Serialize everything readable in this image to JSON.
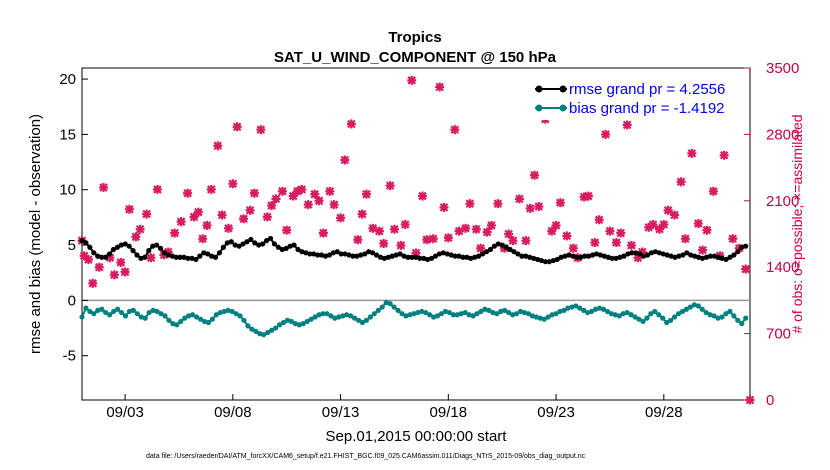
{
  "chart_data": {
    "type": "line",
    "title": "Tropics",
    "subtitle": "SAT_U_WIND_COMPONENT @ 150 hPa",
    "xlabel": "Sep.01,2015 00:00:00 start",
    "ylabel_left": "rmse and bias (model - observation)",
    "ylabel_right": "# of obs: o=possible; ×=assimilated",
    "x_range_days": [
      1,
      32
    ],
    "ylim_left": [
      -9,
      21
    ],
    "ylim_right": [
      0,
      3500
    ],
    "left_ticks": [
      -5,
      0,
      5,
      10,
      15,
      20
    ],
    "right_ticks": [
      0,
      700,
      1400,
      2100,
      2800,
      3500
    ],
    "x_ticks": [
      {
        "day": 3,
        "label": "09/03"
      },
      {
        "day": 8,
        "label": "09/08"
      },
      {
        "day": 13,
        "label": "09/13"
      },
      {
        "day": 18,
        "label": "09/18"
      },
      {
        "day": 23,
        "label": "09/23"
      },
      {
        "day": 28,
        "label": "09/28"
      }
    ],
    "series": [
      {
        "name": "rmse",
        "legend": "rmse grand pr = 4.2556",
        "color": "#000000",
        "axis": "left",
        "values": [
          5.4,
          5.2,
          4.8,
          4.3,
          4.0,
          3.9,
          3.9,
          4.2,
          4.6,
          4.8,
          5.0,
          5.1,
          4.9,
          4.5,
          4.1,
          3.8,
          3.9,
          4.5,
          4.9,
          5.0,
          4.7,
          4.3,
          4.1,
          4.0,
          3.9,
          3.9,
          3.9,
          3.8,
          3.8,
          3.7,
          4.0,
          4.3,
          4.2,
          4.0,
          3.9,
          4.3,
          4.8,
          5.2,
          5.3,
          5.0,
          4.9,
          5.1,
          5.3,
          5.5,
          5.2,
          5.0,
          5.1,
          5.4,
          5.6,
          5.1,
          4.8,
          4.6,
          4.7,
          4.9,
          5.0,
          4.6,
          4.4,
          4.3,
          4.2,
          4.2,
          4.1,
          4.1,
          4.0,
          4.1,
          4.3,
          4.4,
          4.2,
          4.2,
          4.1,
          4.0,
          4.0,
          4.1,
          4.2,
          4.4,
          4.3,
          4.1,
          3.9,
          3.8,
          3.9,
          4.0,
          4.1,
          4.2,
          4.0,
          3.9,
          3.9,
          3.9,
          3.8,
          3.8,
          3.7,
          3.8,
          4.0,
          4.2,
          4.3,
          4.2,
          4.1,
          4.0,
          4.0,
          3.9,
          3.9,
          3.8,
          3.9,
          4.0,
          4.2,
          4.4,
          4.6,
          4.9,
          5.1,
          5.0,
          4.8,
          4.6,
          4.4,
          4.2,
          4.0,
          4.0,
          3.9,
          3.8,
          3.7,
          3.6,
          3.5,
          3.5,
          3.6,
          3.7,
          3.9,
          4.0,
          4.1,
          4.0,
          3.9,
          3.9,
          4.0,
          4.0,
          4.1,
          4.2,
          4.1,
          4.0,
          3.9,
          3.8,
          3.8,
          3.9,
          4.0,
          4.2,
          4.3,
          4.3,
          4.2,
          4.0,
          4.1,
          4.3,
          4.4,
          4.3,
          4.2,
          4.1,
          4.0,
          3.9,
          4.0,
          4.1,
          4.3,
          4.1,
          4.0,
          3.9,
          3.8,
          3.9,
          4.0,
          4.0,
          3.9,
          3.8,
          3.7,
          3.9,
          4.1,
          4.4,
          4.8,
          4.9
        ]
      },
      {
        "name": "bias",
        "legend": "bias grand pr = -1.4192",
        "color": "#008080",
        "axis": "left",
        "values": [
          -1.5,
          -0.7,
          -1.0,
          -1.2,
          -0.9,
          -0.8,
          -1.1,
          -1.3,
          -1.0,
          -0.8,
          -1.1,
          -1.4,
          -1.0,
          -0.9,
          -1.2,
          -1.5,
          -1.6,
          -1.1,
          -0.9,
          -1.0,
          -1.2,
          -1.4,
          -1.8,
          -2.1,
          -2.2,
          -1.9,
          -1.6,
          -1.4,
          -1.3,
          -1.5,
          -1.7,
          -1.9,
          -2.0,
          -1.7,
          -1.3,
          -1.1,
          -1.0,
          -0.9,
          -1.0,
          -1.2,
          -1.4,
          -1.8,
          -2.3,
          -2.6,
          -2.8,
          -3.0,
          -3.1,
          -2.9,
          -2.7,
          -2.5,
          -2.2,
          -2.0,
          -1.8,
          -1.9,
          -2.1,
          -2.2,
          -2.1,
          -1.9,
          -1.7,
          -1.5,
          -1.3,
          -1.2,
          -1.2,
          -1.4,
          -1.6,
          -1.5,
          -1.4,
          -1.3,
          -1.4,
          -1.6,
          -1.8,
          -2.0,
          -1.8,
          -1.5,
          -1.2,
          -0.9,
          -0.6,
          -0.2,
          -0.3,
          -0.6,
          -0.9,
          -1.2,
          -1.4,
          -1.3,
          -1.2,
          -1.1,
          -1.0,
          -1.1,
          -1.3,
          -1.5,
          -1.4,
          -1.2,
          -1.0,
          -1.1,
          -1.3,
          -1.3,
          -1.2,
          -1.1,
          -1.3,
          -1.4,
          -1.2,
          -1.0,
          -0.8,
          -0.9,
          -1.1,
          -1.2,
          -1.0,
          -0.9,
          -1.1,
          -1.3,
          -1.2,
          -1.0,
          -1.1,
          -1.2,
          -1.4,
          -1.5,
          -1.6,
          -1.7,
          -1.5,
          -1.3,
          -1.2,
          -1.0,
          -0.9,
          -0.7,
          -0.6,
          -0.5,
          -0.7,
          -0.9,
          -1.1,
          -1.0,
          -0.8,
          -0.7,
          -0.8,
          -1.0,
          -1.2,
          -1.3,
          -1.4,
          -1.2,
          -1.1,
          -1.3,
          -1.5,
          -1.7,
          -1.9,
          -1.6,
          -1.2,
          -1.0,
          -1.3,
          -1.6,
          -2.0,
          -1.8,
          -1.5,
          -1.2,
          -1.0,
          -0.8,
          -0.6,
          -0.4,
          -0.5,
          -0.8,
          -1.1,
          -1.3,
          -1.4,
          -1.6,
          -1.5,
          -1.2,
          -1.0,
          -1.4,
          -1.8,
          -2.1,
          -1.6
        ]
      },
      {
        "name": "obs_assimilated",
        "color": "#d81b60",
        "axis": "right",
        "marker": "x",
        "points": [
          [
            1.0,
            1680
          ],
          [
            1.1,
            1520
          ],
          [
            1.3,
            1480
          ],
          [
            1.5,
            1230
          ],
          [
            1.8,
            1400
          ],
          [
            2.0,
            2240
          ],
          [
            2.3,
            1500
          ],
          [
            2.5,
            1320
          ],
          [
            2.8,
            1450
          ],
          [
            3.0,
            1350
          ],
          [
            3.2,
            2010
          ],
          [
            3.5,
            1720
          ],
          [
            3.7,
            1800
          ],
          [
            4.0,
            1960
          ],
          [
            4.2,
            1500
          ],
          [
            4.5,
            2220
          ],
          [
            4.8,
            1530
          ],
          [
            5.0,
            1560
          ],
          [
            5.3,
            1760
          ],
          [
            5.6,
            1880
          ],
          [
            5.9,
            2180
          ],
          [
            6.2,
            1930
          ],
          [
            6.4,
            1980
          ],
          [
            6.6,
            1700
          ],
          [
            6.8,
            1840
          ],
          [
            7.0,
            2220
          ],
          [
            7.3,
            2680
          ],
          [
            7.5,
            1950
          ],
          [
            7.8,
            1810
          ],
          [
            8.0,
            2280
          ],
          [
            8.2,
            2880
          ],
          [
            8.5,
            1910
          ],
          [
            8.8,
            2000
          ],
          [
            9.0,
            2180
          ],
          [
            9.3,
            2850
          ],
          [
            9.6,
            1930
          ],
          [
            9.8,
            2050
          ],
          [
            10.0,
            2120
          ],
          [
            10.3,
            2200
          ],
          [
            10.5,
            1790
          ],
          [
            10.8,
            2150
          ],
          [
            11.0,
            2200
          ],
          [
            11.2,
            2220
          ],
          [
            11.5,
            2060
          ],
          [
            11.8,
            2170
          ],
          [
            12.0,
            2100
          ],
          [
            12.2,
            1760
          ],
          [
            12.5,
            2200
          ],
          [
            12.7,
            2060
          ],
          [
            13.0,
            1920
          ],
          [
            13.2,
            2530
          ],
          [
            13.5,
            2910
          ],
          [
            13.8,
            1690
          ],
          [
            14.0,
            1960
          ],
          [
            14.2,
            2170
          ],
          [
            14.5,
            1810
          ],
          [
            14.8,
            1780
          ],
          [
            15.0,
            1650
          ],
          [
            15.3,
            2260
          ],
          [
            15.5,
            1800
          ],
          [
            15.8,
            1630
          ],
          [
            16.0,
            1850
          ],
          [
            16.3,
            3370
          ],
          [
            16.5,
            1550
          ],
          [
            16.8,
            2150
          ],
          [
            17.0,
            1690
          ],
          [
            17.3,
            1700
          ],
          [
            17.6,
            3300
          ],
          [
            17.8,
            2030
          ],
          [
            18.0,
            1710
          ],
          [
            18.3,
            2850
          ],
          [
            18.5,
            1780
          ],
          [
            18.8,
            1810
          ],
          [
            19.0,
            2070
          ],
          [
            19.3,
            1800
          ],
          [
            19.5,
            1600
          ],
          [
            19.8,
            1770
          ],
          [
            20.0,
            1840
          ],
          [
            20.3,
            2070
          ],
          [
            20.6,
            1600
          ],
          [
            20.8,
            1750
          ],
          [
            21.0,
            1680
          ],
          [
            21.3,
            2120
          ],
          [
            21.6,
            1680
          ],
          [
            21.8,
            2020
          ],
          [
            22.0,
            2370
          ],
          [
            22.2,
            2040
          ],
          [
            22.5,
            2960
          ],
          [
            22.8,
            1780
          ],
          [
            23.0,
            1840
          ],
          [
            23.2,
            2080
          ],
          [
            23.5,
            1730
          ],
          [
            23.8,
            1600
          ],
          [
            24.0,
            1500
          ],
          [
            24.3,
            2140
          ],
          [
            24.5,
            2150
          ],
          [
            24.8,
            1660
          ],
          [
            25.0,
            1900
          ],
          [
            25.3,
            2800
          ],
          [
            25.5,
            1780
          ],
          [
            25.8,
            1660
          ],
          [
            26.0,
            1760
          ],
          [
            26.3,
            2900
          ],
          [
            26.5,
            1630
          ],
          [
            26.8,
            1500
          ],
          [
            27.0,
            1560
          ],
          [
            27.3,
            1820
          ],
          [
            27.5,
            1850
          ],
          [
            27.8,
            1800
          ],
          [
            28.0,
            1850
          ],
          [
            28.2,
            2000
          ],
          [
            28.5,
            1950
          ],
          [
            28.8,
            2300
          ],
          [
            29.0,
            1700
          ],
          [
            29.3,
            2600
          ],
          [
            29.6,
            1860
          ],
          [
            29.8,
            1580
          ],
          [
            30.0,
            1790
          ],
          [
            30.3,
            2200
          ],
          [
            30.6,
            1520
          ],
          [
            30.8,
            2580
          ],
          [
            31.2,
            1700
          ],
          [
            31.5,
            1600
          ],
          [
            31.8,
            1380
          ],
          [
            32.0,
            0
          ]
        ]
      }
    ],
    "footer": "data file: /Users/raeder/DAI/ATM_forcXX/CAM6_setup/f.e21.FHIST_BGC.f09_025.CAM6assim.011/Diags_NTrS_2015-09/obs_diag_output.nc"
  }
}
